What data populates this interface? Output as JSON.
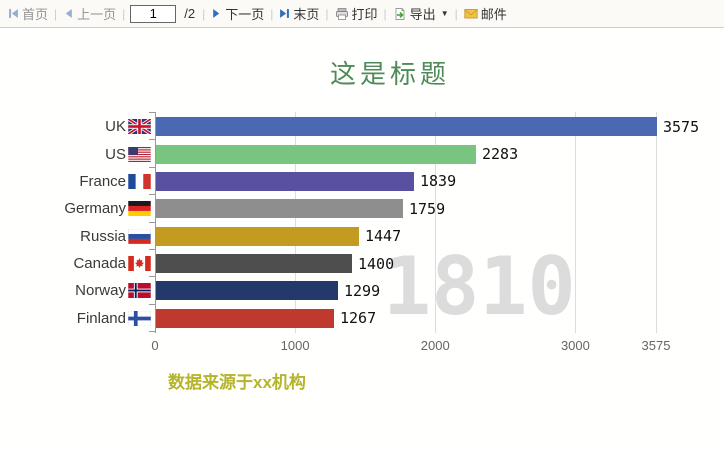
{
  "toolbar": {
    "first_label": "首页",
    "prev_label": "上一页",
    "page_value": "1",
    "page_total_label": "/2",
    "next_label": "下一页",
    "last_label": "末页",
    "print_label": "打印",
    "export_label": "导出",
    "mail_label": "邮件"
  },
  "chart_data": {
    "type": "bar",
    "orientation": "horizontal",
    "title": "这是标题",
    "source_note": "数据来源于xx机构",
    "watermark_frame_label": "1810",
    "categories": [
      "UK",
      "US",
      "France",
      "Germany",
      "Russia",
      "Canada",
      "Norway",
      "Finland"
    ],
    "values": [
      3575,
      2283,
      1839,
      1759,
      1447,
      1400,
      1299,
      1267
    ],
    "bar_colors": [
      "#4a69b2",
      "#79c47f",
      "#5a50a2",
      "#8e8e8e",
      "#c29b20",
      "#4e4e4e",
      "#23396b",
      "#c0392f"
    ],
    "flag_icons": [
      "uk-flag-icon",
      "us-flag-icon",
      "france-flag-icon",
      "germany-flag-icon",
      "russia-flag-icon",
      "canada-flag-icon",
      "norway-flag-icon",
      "finland-flag-icon"
    ],
    "x_ticks": [
      0,
      1000,
      2000,
      3000,
      3575
    ],
    "xlim": [
      0,
      3575
    ],
    "grid": "vertical-lines",
    "legend": "none",
    "title_color": "#4e8b59",
    "source_note_color": "#b5b42a",
    "watermark_color": "#dcdcdc"
  }
}
